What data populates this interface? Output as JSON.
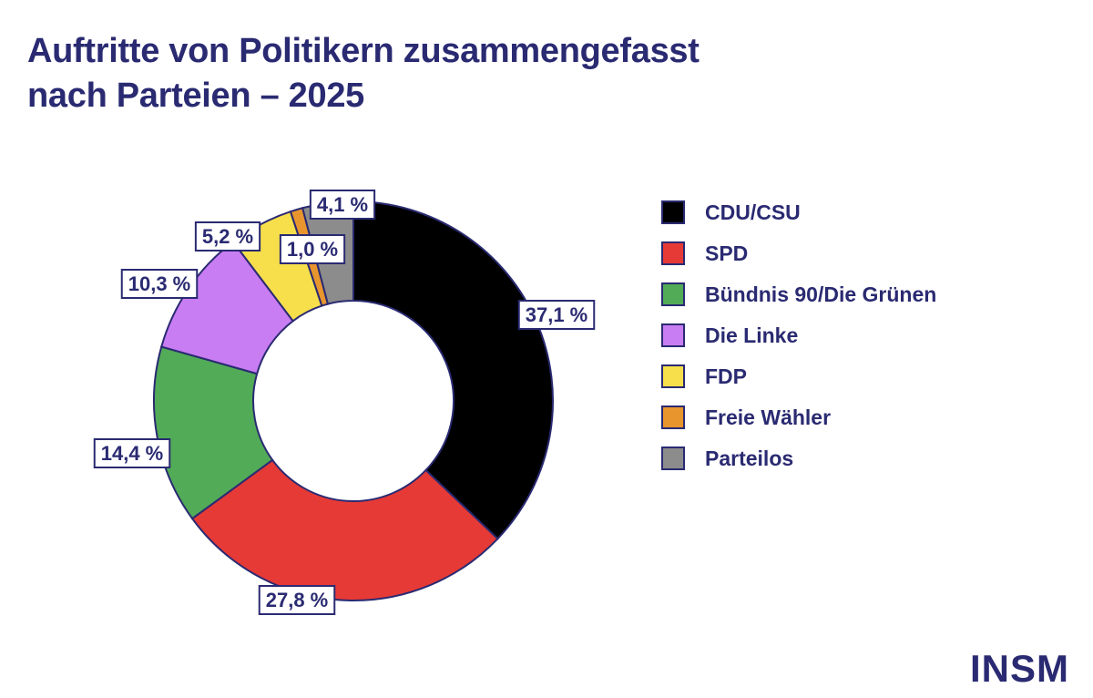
{
  "title_lines": [
    "Auftritte von Politikern zusammengefasst",
    "nach Parteien – 2025"
  ],
  "brand": "INSM",
  "chart_data": {
    "type": "pie",
    "variant": "donut",
    "title": "Auftritte von Politikern zusammengefasst nach Parteien – 2025",
    "categories": [
      "CDU/CSU",
      "SPD",
      "Bündnis 90/Die Grünen",
      "Die Linke",
      "FDP",
      "Freie Wähler",
      "Parteilos"
    ],
    "values": [
      37.1,
      27.8,
      14.4,
      10.3,
      5.2,
      1.0,
      4.1
    ],
    "labels": [
      "37,1 %",
      "27,8 %",
      "14,4 %",
      "10,3 %",
      "5,2 %",
      "1,0 %",
      "4,1 %"
    ],
    "colors": [
      "#000000",
      "#e63a36",
      "#52ab57",
      "#c97df2",
      "#f7df4b",
      "#e8952e",
      "#8c8c8c"
    ],
    "legend_position": "right",
    "outline_color": "#2a2a72"
  }
}
